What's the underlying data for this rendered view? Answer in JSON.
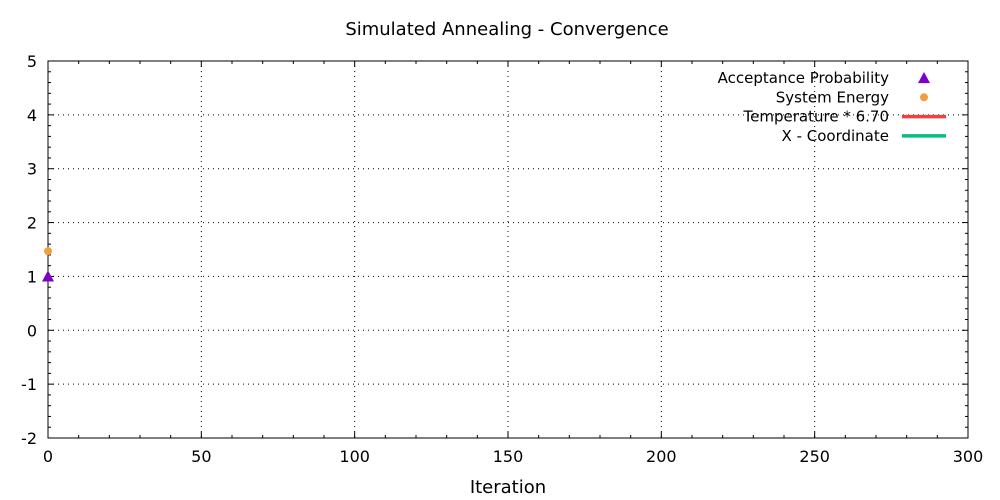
{
  "chart_data": {
    "type": "scatter",
    "title": "Simulated Annealing - Convergence",
    "xlabel": "Iteration",
    "ylabel": "",
    "xlim": [
      0,
      300
    ],
    "ylim": [
      -2,
      5
    ],
    "xticks": [
      0,
      50,
      100,
      150,
      200,
      250,
      300
    ],
    "yticks": [
      -2,
      -1,
      0,
      1,
      2,
      3,
      4,
      5
    ],
    "grid": true,
    "legend_position": "top-right",
    "series": [
      {
        "name": "Acceptance Probability",
        "kind": "points",
        "marker": "triangle",
        "color": "#7b00c8",
        "x": [
          0
        ],
        "y": [
          1.0
        ]
      },
      {
        "name": "System Energy",
        "kind": "points",
        "marker": "circle",
        "color": "#f0a040",
        "x": [
          0
        ],
        "y": [
          1.47
        ]
      },
      {
        "name": "Temperature * 6.70",
        "kind": "line",
        "color": "#f24040",
        "x": [],
        "y": []
      },
      {
        "name": "X - Coordinate",
        "kind": "line",
        "color": "#00c080",
        "x": [],
        "y": []
      }
    ]
  }
}
